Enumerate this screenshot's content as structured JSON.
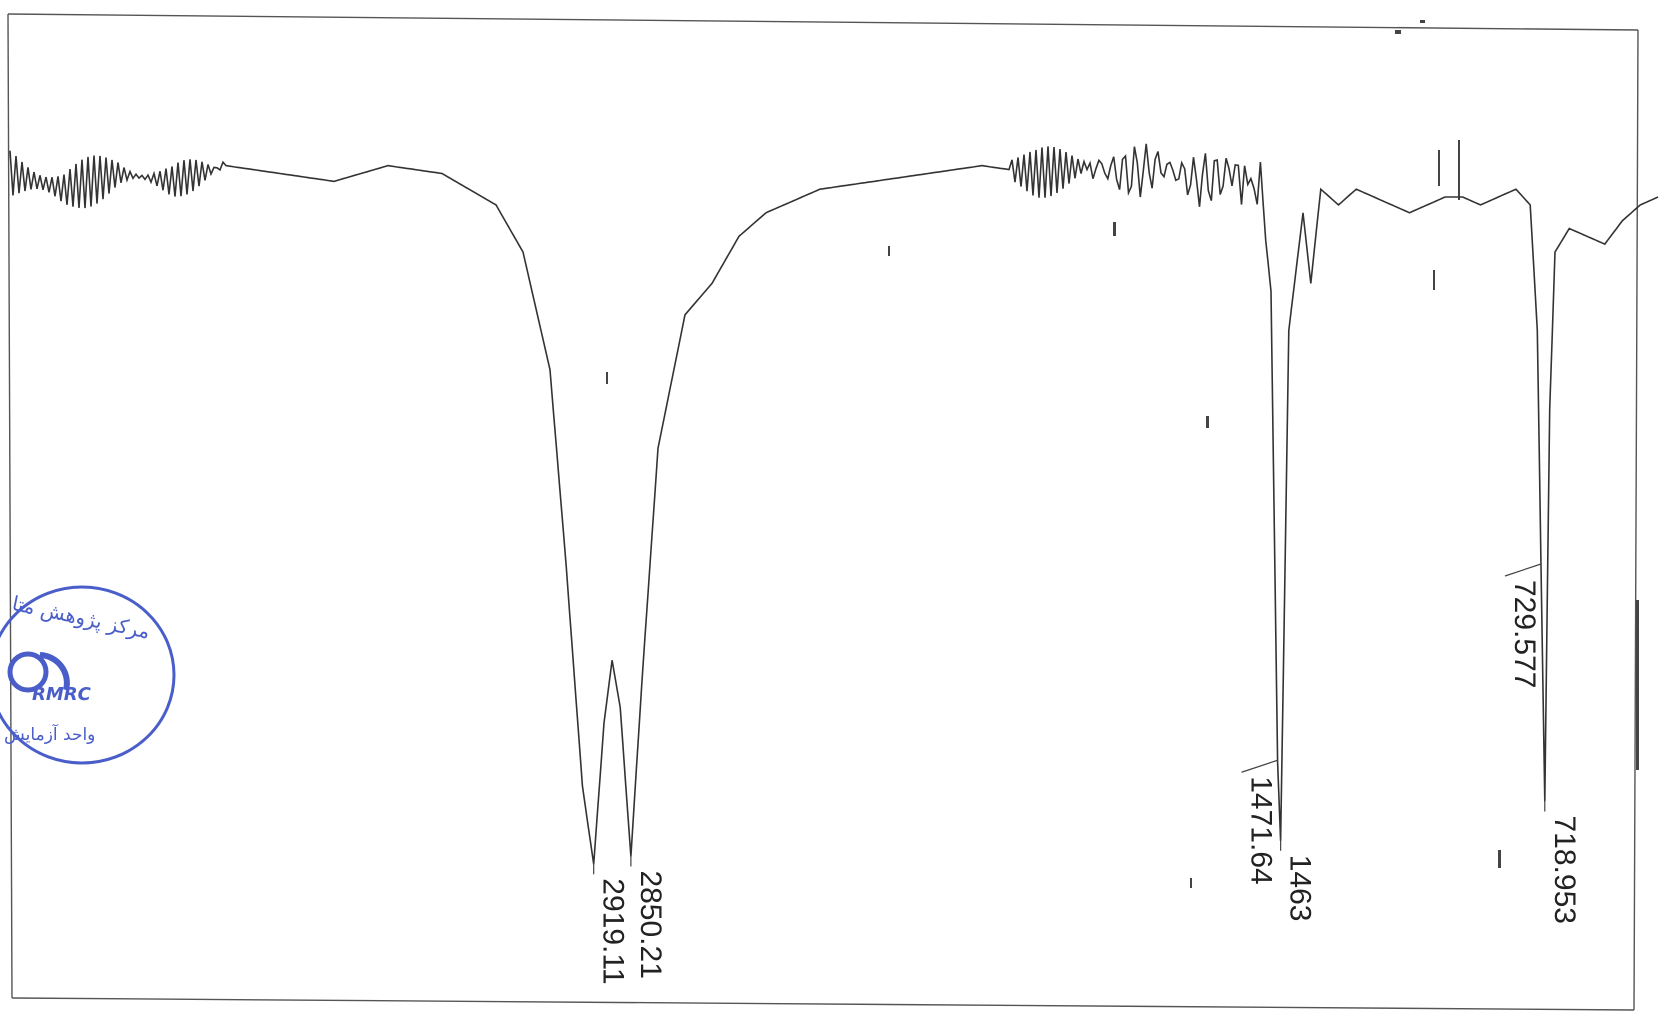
{
  "chart_data": {
    "type": "line",
    "title": "",
    "xlabel": "",
    "ylabel": "",
    "x_direction": "decreasing",
    "grid": false,
    "series": [
      {
        "x": [
          4000,
          3900,
          3800,
          3700,
          3600,
          3500,
          3400,
          3300,
          3200,
          3100,
          3050,
          3000,
          2970,
          2940,
          2919.11,
          2900,
          2885,
          2870,
          2850.21,
          2830,
          2800,
          2750,
          2700,
          2650,
          2600,
          2500,
          2400,
          2300,
          2200,
          2100,
          2000,
          1900,
          1800,
          1700,
          1600,
          1520,
          1490,
          1471.64,
          1463,
          1440,
          1400,
          1378,
          1350,
          1300,
          1250,
          1200,
          1150,
          1100,
          1050,
          1000,
          950,
          900,
          850,
          800,
          760,
          740,
          729.577,
          718.953,
          705,
          690,
          650,
          600,
          550,
          500,
          450,
          400
        ],
        "y": [
          90,
          88,
          90,
          89,
          91,
          90,
          89,
          91,
          90,
          86,
          80,
          65,
          40,
          12,
          2,
          20,
          28,
          22,
          3,
          25,
          55,
          72,
          76,
          82,
          85,
          88,
          89,
          90,
          91,
          90,
          91,
          90,
          91,
          89,
          90,
          88,
          75,
          15,
          5,
          70,
          85,
          76,
          88,
          86,
          88,
          87,
          86,
          85,
          86,
          87,
          87,
          86,
          87,
          88,
          86,
          70,
          40,
          10,
          60,
          80,
          83,
          82,
          81,
          84,
          86,
          87
        ]
      }
    ],
    "peak_labels": [
      "2919.11",
      "2850.21",
      "1471.64",
      "1463",
      "729.577",
      "718.953"
    ]
  },
  "stamp": {
    "line1": "مرکز پژوهش متا",
    "logo": "RMRC",
    "line2": "واحد آزمایش",
    "color": "#4a5ec9"
  }
}
